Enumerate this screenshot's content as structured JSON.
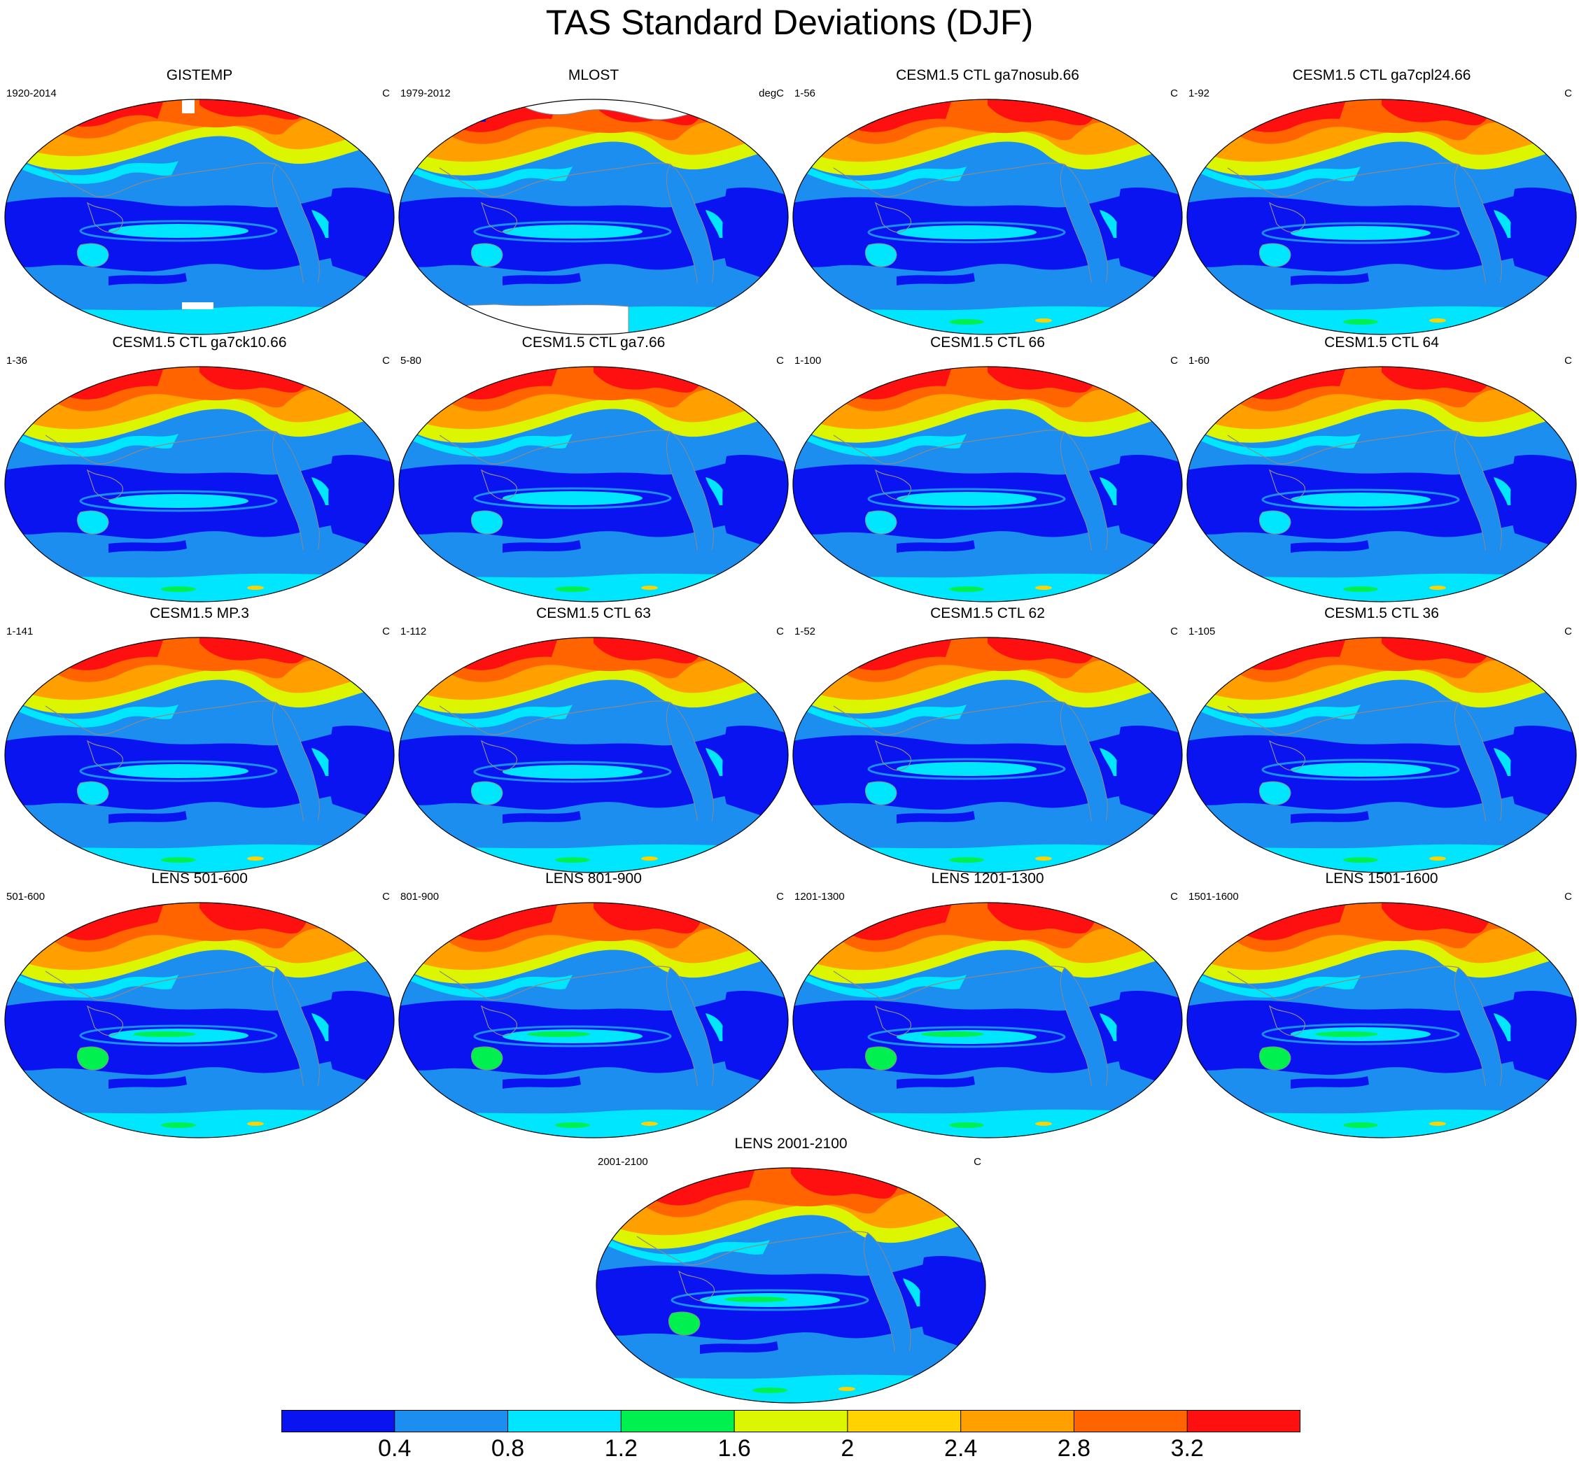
{
  "figure": {
    "title": "TAS Standard Deviations (DJF)"
  },
  "panels": [
    {
      "title": "GISTEMP",
      "period": "1920-2014",
      "units": "C",
      "variant": "obs_gis"
    },
    {
      "title": "MLOST",
      "period": "1979-2012",
      "units": "degC",
      "variant": "obs_mlost"
    },
    {
      "title": "CESM1.5 CTL ga7nosub.66",
      "period": "1-56",
      "units": "C",
      "variant": "model"
    },
    {
      "title": "CESM1.5 CTL ga7cpl24.66",
      "period": "1-92",
      "units": "C",
      "variant": "model"
    },
    {
      "title": "CESM1.5 CTL ga7ck10.66",
      "period": "1-36",
      "units": "C",
      "variant": "model"
    },
    {
      "title": "CESM1.5 CTL ga7.66",
      "period": "5-80",
      "units": "C",
      "variant": "model"
    },
    {
      "title": "CESM1.5 CTL 66",
      "period": "1-100",
      "units": "C",
      "variant": "model"
    },
    {
      "title": "CESM1.5 CTL 64",
      "period": "1-60",
      "units": "C",
      "variant": "model"
    },
    {
      "title": "CESM1.5 MP.3",
      "period": "1-141",
      "units": "C",
      "variant": "model"
    },
    {
      "title": "CESM1.5 CTL 63",
      "period": "1-112",
      "units": "C",
      "variant": "model"
    },
    {
      "title": "CESM1.5 CTL 62",
      "period": "1-52",
      "units": "C",
      "variant": "model"
    },
    {
      "title": "CESM1.5 CTL 36",
      "period": "1-105",
      "units": "C",
      "variant": "model"
    },
    {
      "title": "LENS 501-600",
      "period": "501-600",
      "units": "C",
      "variant": "lens"
    },
    {
      "title": "LENS 801-900",
      "period": "801-900",
      "units": "C",
      "variant": "lens"
    },
    {
      "title": "LENS 1201-1300",
      "period": "1201-1300",
      "units": "C",
      "variant": "lens"
    },
    {
      "title": "LENS 1501-1600",
      "period": "1501-1600",
      "units": "C",
      "variant": "lens"
    },
    {
      "title": "LENS 2001-2100",
      "period": "2001-2100",
      "units": "C",
      "variant": "lens"
    }
  ],
  "colorbar": {
    "colors": [
      "#0a14f0",
      "#1c8ef0",
      "#00e6ff",
      "#00f050",
      "#dcf500",
      "#ffd200",
      "#ff9f00",
      "#ff6400",
      "#ff1010"
    ],
    "labels": [
      "0.4",
      "0.8",
      "1.2",
      "1.6",
      "2",
      "2.4",
      "2.8",
      "3.2"
    ]
  },
  "map_colors": {
    "ocean_background": "#1c8ef0",
    "coastline": "#8a8a8a",
    "missing": "#ffffff"
  }
}
